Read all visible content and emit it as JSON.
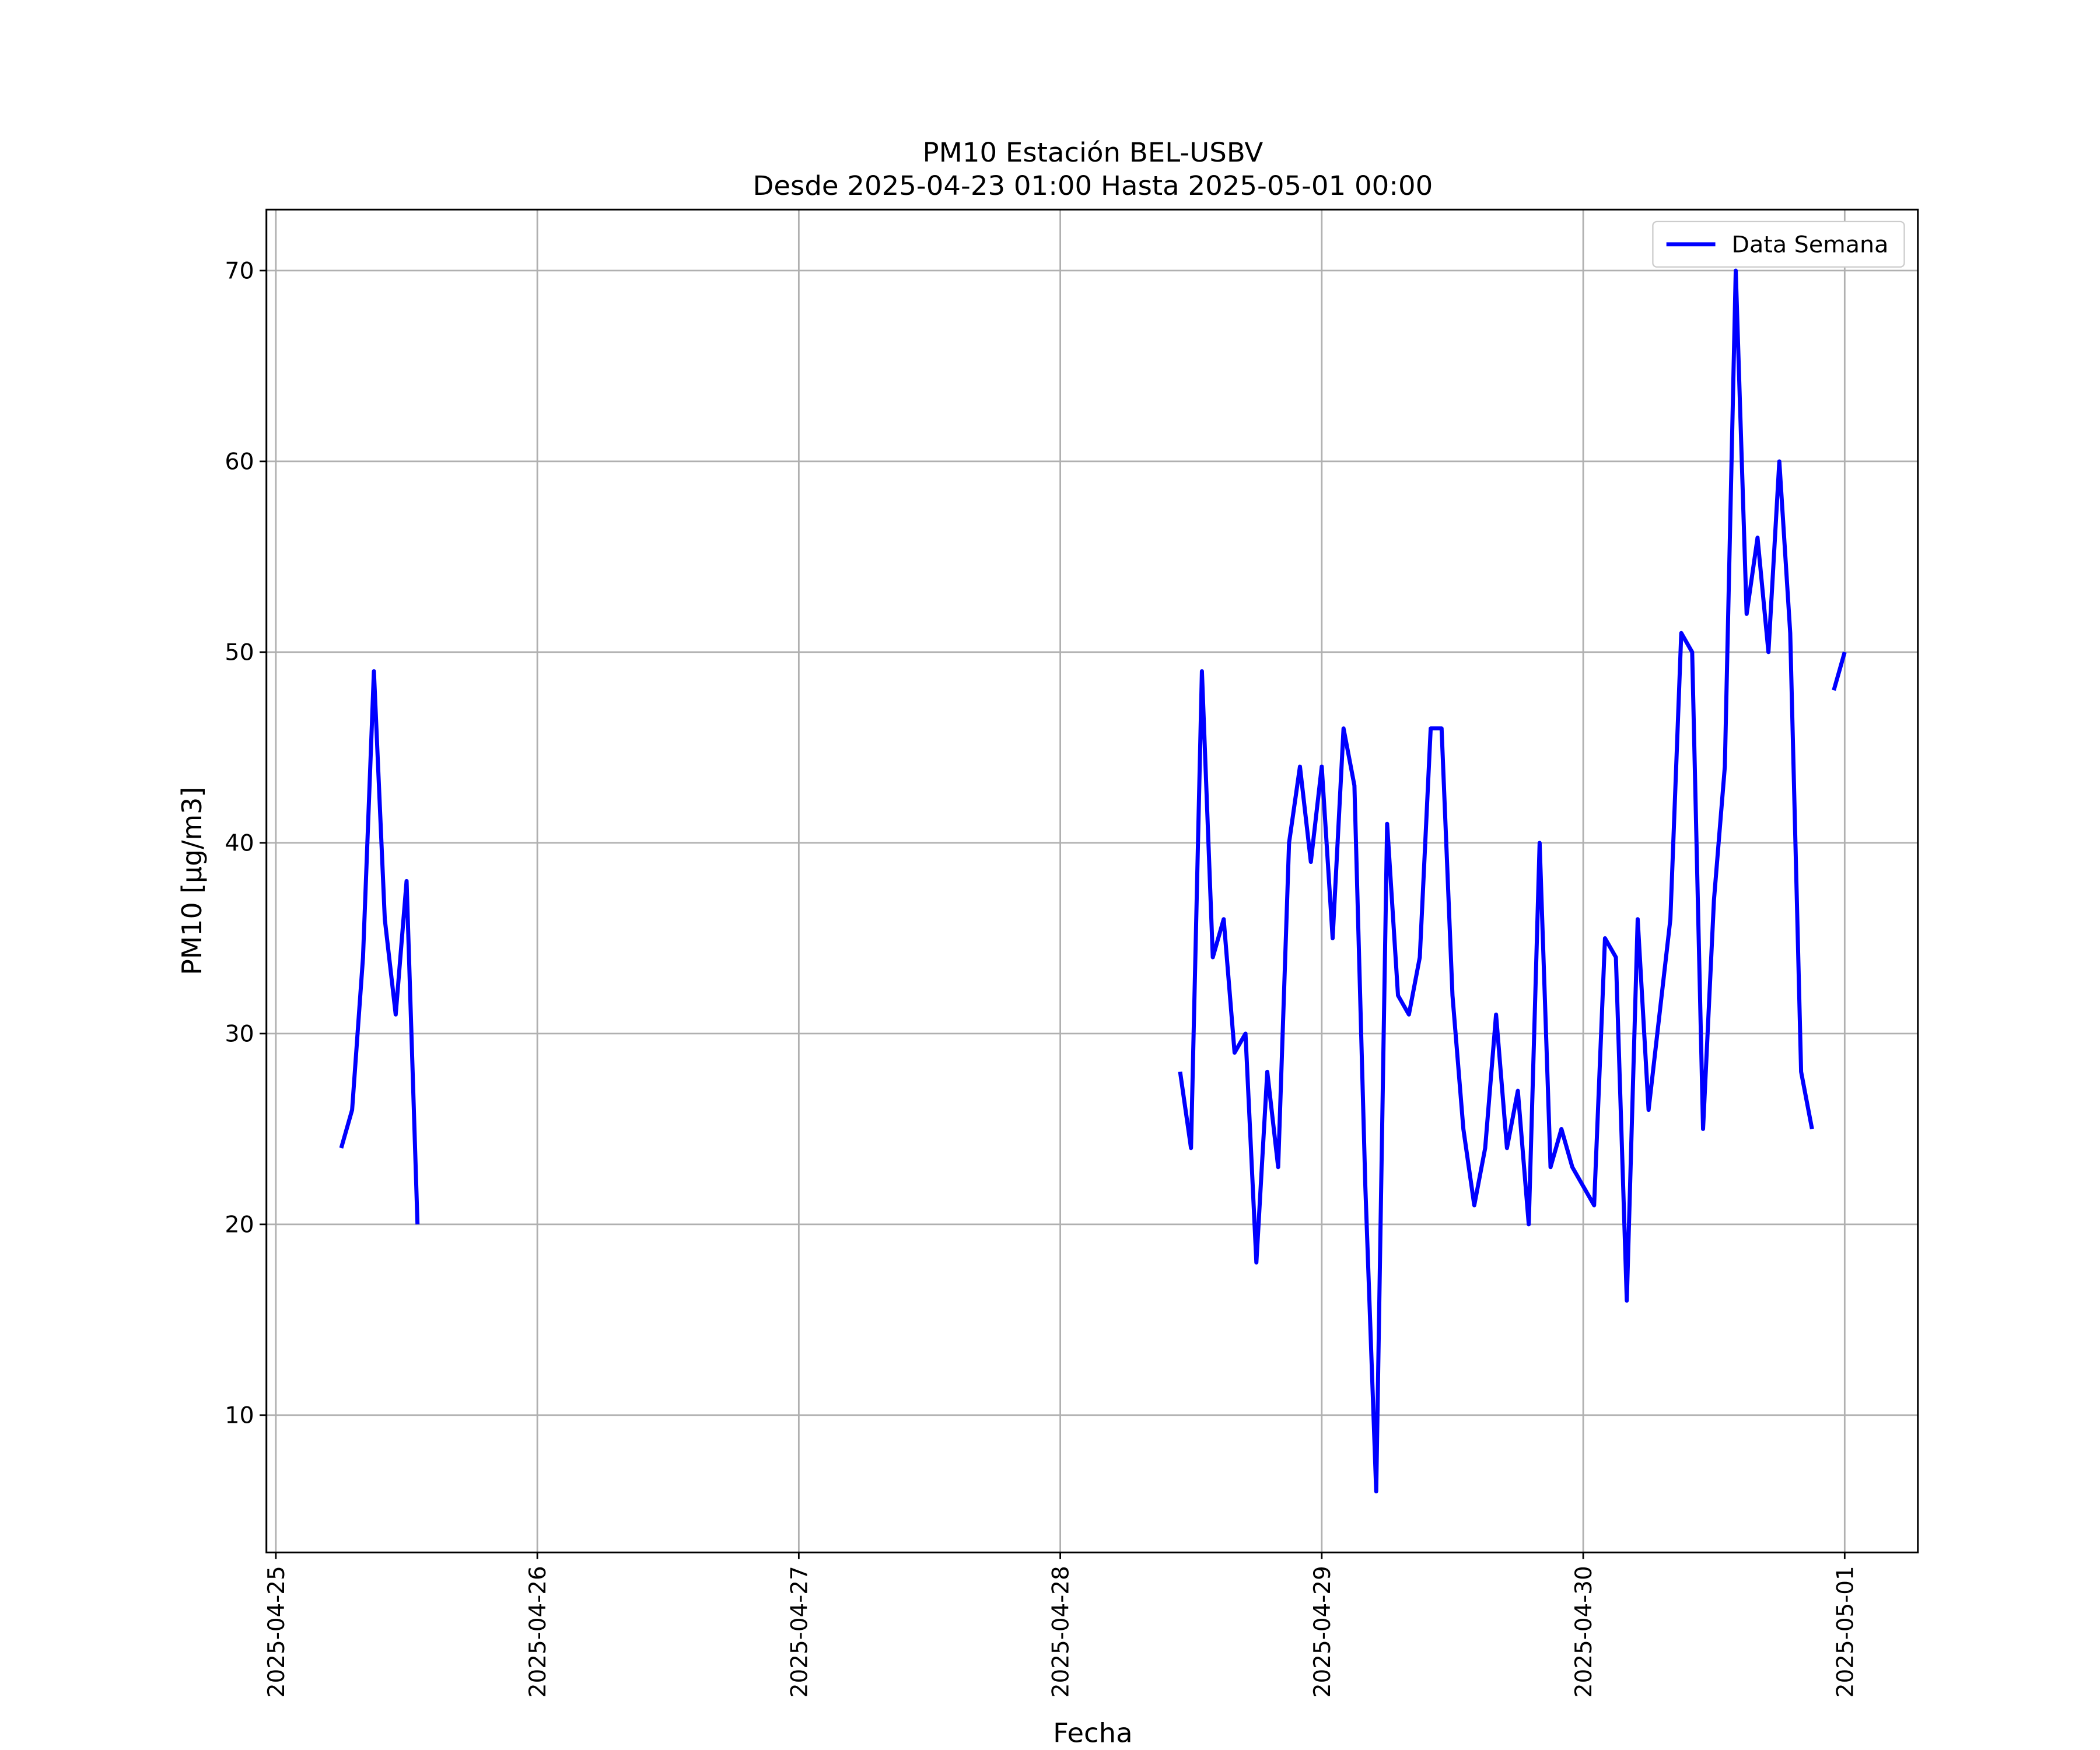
{
  "chart_data": {
    "type": "line",
    "title": "PM10 Estación BEL-USBV",
    "subtitle": "Desde 2025-04-23 01:00 Hasta 2025-05-01 00:00",
    "x_label": "Fecha",
    "y_label": "PM10 [μg/m3]",
    "x": [
      "2025-04-25 06:00",
      "2025-04-25 07:00",
      "2025-04-25 08:00",
      "2025-04-25 09:00",
      "2025-04-25 10:00",
      "2025-04-25 11:00",
      "2025-04-25 12:00",
      "2025-04-25 13:00",
      "2025-04-25 14:00",
      "2025-04-28 11:00",
      "2025-04-28 12:00",
      "2025-04-28 13:00",
      "2025-04-28 14:00",
      "2025-04-28 15:00",
      "2025-04-28 16:00",
      "2025-04-28 17:00",
      "2025-04-28 18:00",
      "2025-04-28 19:00",
      "2025-04-28 20:00",
      "2025-04-28 21:00",
      "2025-04-28 22:00",
      "2025-04-28 23:00",
      "2025-04-29 00:00",
      "2025-04-29 01:00",
      "2025-04-29 02:00",
      "2025-04-29 03:00",
      "2025-04-29 04:00",
      "2025-04-29 05:00",
      "2025-04-29 06:00",
      "2025-04-29 07:00",
      "2025-04-29 08:00",
      "2025-04-29 09:00",
      "2025-04-29 10:00",
      "2025-04-29 11:00",
      "2025-04-29 12:00",
      "2025-04-29 13:00",
      "2025-04-29 14:00",
      "2025-04-29 15:00",
      "2025-04-29 16:00",
      "2025-04-29 17:00",
      "2025-04-29 18:00",
      "2025-04-29 19:00",
      "2025-04-29 20:00",
      "2025-04-29 21:00",
      "2025-04-29 22:00",
      "2025-04-29 23:00",
      "2025-04-30 00:00",
      "2025-04-30 01:00",
      "2025-04-30 02:00",
      "2025-04-30 03:00",
      "2025-04-30 04:00",
      "2025-04-30 05:00",
      "2025-04-30 06:00",
      "2025-04-30 07:00",
      "2025-04-30 08:00",
      "2025-04-30 09:00",
      "2025-04-30 10:00",
      "2025-04-30 11:00",
      "2025-04-30 12:00",
      "2025-04-30 13:00",
      "2025-04-30 14:00",
      "2025-04-30 15:00",
      "2025-04-30 16:00",
      "2025-04-30 17:00",
      "2025-04-30 18:00",
      "2025-04-30 19:00",
      "2025-04-30 20:00",
      "2025-04-30 21:00",
      "2025-04-30 22:00",
      "2025-04-30 23:00",
      "2025-05-01 00:00"
    ],
    "series": [
      {
        "name": "Data Semana",
        "color": "#0000ff",
        "values": [
          24,
          26,
          34,
          49,
          36,
          31,
          38,
          20,
          null,
          28,
          24,
          49,
          34,
          36,
          29,
          30,
          18,
          28,
          23,
          40,
          44,
          39,
          44,
          35,
          46,
          43,
          22,
          6,
          41,
          32,
          31,
          34,
          46,
          46,
          32,
          25,
          21,
          24,
          31,
          24,
          27,
          20,
          40,
          23,
          25,
          23,
          22,
          21,
          35,
          34,
          16,
          36,
          26,
          31,
          36,
          51,
          50,
          25,
          37,
          44,
          70,
          52,
          56,
          50,
          60,
          51,
          28,
          25,
          null,
          48,
          50
        ]
      }
    ],
    "xlim": [
      "2025-04-24 23:08",
      "2025-05-01 06:43"
    ],
    "xticks": [
      "2025-04-25",
      "2025-04-26",
      "2025-04-27",
      "2025-04-28",
      "2025-04-29",
      "2025-04-30",
      "2025-05-01"
    ],
    "ylim": [
      2.8,
      73.2
    ],
    "yticks": [
      10,
      20,
      30,
      40,
      50,
      60,
      70
    ],
    "grid": true,
    "legend": "upper right"
  }
}
